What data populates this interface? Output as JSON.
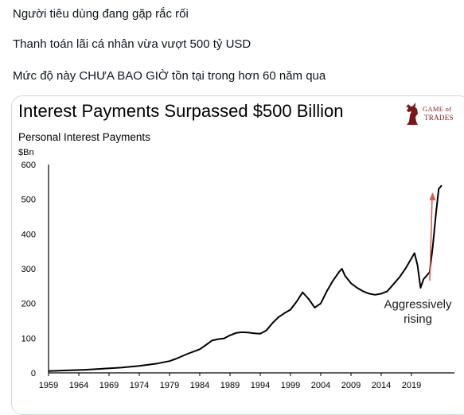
{
  "tweet": {
    "lines": [
      "Người tiêu dùng đang gặp rắc rối",
      "Thanh toán lãi cá nhân vừa vượt 500 tỷ USD",
      "Mức độ này CHƯA BAO GIỜ tồn tại trong hơn 60 năm qua"
    ]
  },
  "logo": {
    "line1": "GAME of",
    "line2": "TRADES",
    "icon": "chess-knight-bull-icon",
    "color": "#7a1616"
  },
  "chart_data": {
    "type": "line",
    "title": "Interest Payments Surpassed $500 Billion",
    "subtitle": "Personal Interest Payments",
    "ylabel": "$Bn",
    "xlabel": "",
    "ylim": [
      0,
      600
    ],
    "xlim": [
      1959,
      2024
    ],
    "yticks": [
      "0",
      "100",
      "200",
      "300",
      "400",
      "500",
      "600"
    ],
    "xticks": [
      "1959",
      "1964",
      "1969",
      "1974",
      "1979",
      "1984",
      "1989",
      "1994",
      "1999",
      "2004",
      "2009",
      "2014",
      "2019"
    ],
    "grid": false,
    "legend": "none",
    "annotation": {
      "text_line1": "Aggressively",
      "text_line2": "rising",
      "arrow_color": "#e0584a"
    },
    "series": [
      {
        "color": "#000000",
        "x": [
          1959,
          1962,
          1965,
          1968,
          1971,
          1974,
          1977,
          1979,
          1980,
          1982,
          1984,
          1985,
          1986,
          1987,
          1988,
          1989,
          1990,
          1991,
          1992,
          1993,
          1994,
          1995,
          1996,
          1997,
          1998,
          1999,
          2000,
          2001,
          2002,
          2003,
          2004,
          2005,
          2006,
          2007,
          2007.5,
          2008,
          2009,
          2010,
          2011,
          2012,
          2013,
          2014,
          2015,
          2016,
          2017,
          2018,
          2019,
          2019.5,
          2020,
          2020.5,
          2021,
          2022,
          2022.5,
          2023,
          2023.5,
          2024
        ],
        "values": [
          5,
          7,
          9,
          12,
          15,
          20,
          27,
          34,
          40,
          55,
          68,
          80,
          93,
          97,
          99,
          108,
          115,
          117,
          116,
          114,
          113,
          122,
          143,
          160,
          172,
          182,
          205,
          232,
          213,
          188,
          200,
          235,
          265,
          290,
          300,
          280,
          258,
          245,
          235,
          228,
          225,
          228,
          235,
          255,
          275,
          300,
          330,
          345,
          310,
          245,
          270,
          290,
          360,
          450,
          530,
          540
        ]
      }
    ]
  }
}
